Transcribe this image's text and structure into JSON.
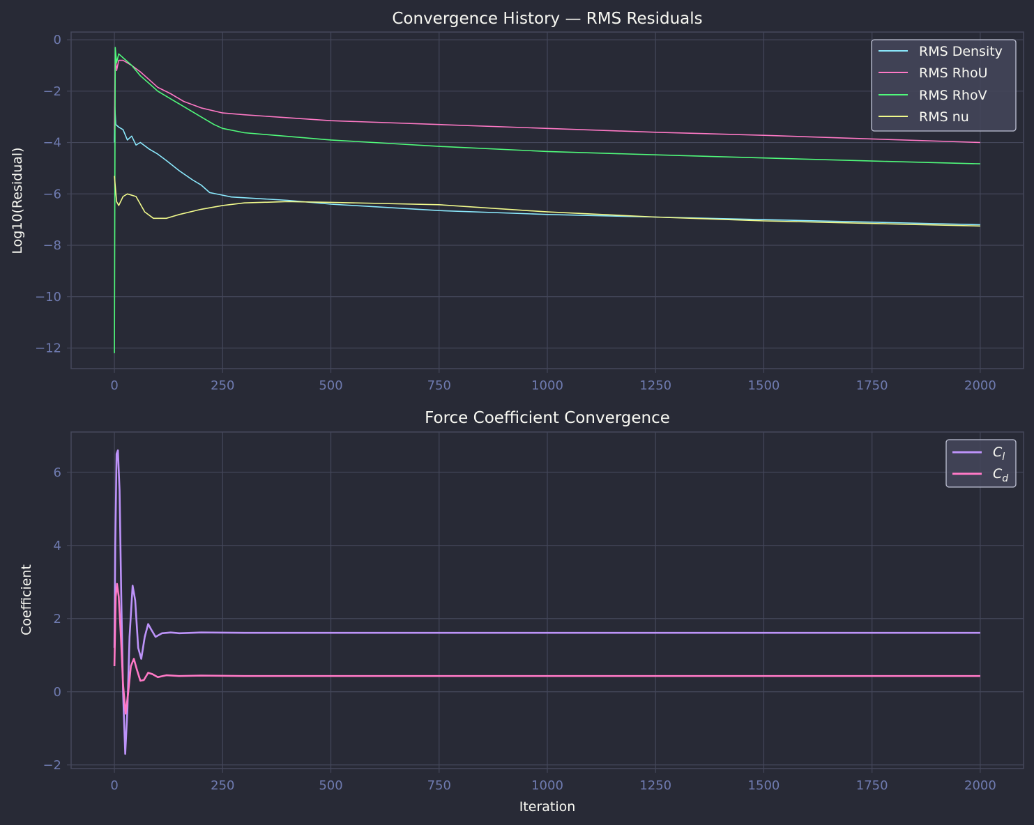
{
  "colors": {
    "background": "#282a36",
    "grid": "#44475a",
    "tick_text": "#6f7bb0",
    "text": "#f8f8f2",
    "legend_bg": "#44475a",
    "legend_border": "#c0c3d6"
  },
  "chart_data": [
    {
      "type": "line",
      "title": "Convergence History — RMS Residuals",
      "xlabel": "",
      "ylabel": "Log10(Residual)",
      "xlim": [
        -100,
        2100
      ],
      "ylim": [
        -12.8,
        0.3
      ],
      "xticks": [
        0,
        250,
        500,
        750,
        1000,
        1250,
        1500,
        1750,
        2000
      ],
      "xtick_labels": [
        "0",
        "250",
        "500",
        "750",
        "1000",
        "1250",
        "1500",
        "1750",
        "2000"
      ],
      "yticks": [
        0,
        -2,
        -4,
        -6,
        -8,
        -10,
        -12
      ],
      "ytick_labels": [
        "0",
        "−2",
        "−4",
        "−6",
        "−8",
        "−10",
        "−12"
      ],
      "grid": true,
      "legend_position": "top-right",
      "series": [
        {
          "name": "RMS Density",
          "color": "#8be9fd",
          "points": [
            [
              0,
              -4.0
            ],
            [
              1,
              -2.6
            ],
            [
              3,
              -3.3
            ],
            [
              10,
              -3.4
            ],
            [
              20,
              -3.5
            ],
            [
              30,
              -3.9
            ],
            [
              40,
              -3.75
            ],
            [
              50,
              -4.1
            ],
            [
              60,
              -4.0
            ],
            [
              80,
              -4.25
            ],
            [
              100,
              -4.45
            ],
            [
              120,
              -4.7
            ],
            [
              150,
              -5.1
            ],
            [
              180,
              -5.45
            ],
            [
              200,
              -5.65
            ],
            [
              220,
              -5.95
            ],
            [
              250,
              -6.05
            ],
            [
              270,
              -6.12
            ],
            [
              300,
              -6.15
            ],
            [
              400,
              -6.25
            ],
            [
              500,
              -6.4
            ],
            [
              750,
              -6.65
            ],
            [
              1000,
              -6.8
            ],
            [
              1250,
              -6.9
            ],
            [
              1500,
              -7.0
            ],
            [
              1750,
              -7.1
            ],
            [
              2000,
              -7.2
            ]
          ]
        },
        {
          "name": "RMS RhoU",
          "color": "#ff79c6",
          "points": [
            [
              0,
              -3.5
            ],
            [
              2,
              -0.5
            ],
            [
              5,
              -1.2
            ],
            [
              10,
              -0.8
            ],
            [
              20,
              -0.8
            ],
            [
              40,
              -1.0
            ],
            [
              60,
              -1.25
            ],
            [
              80,
              -1.55
            ],
            [
              100,
              -1.85
            ],
            [
              130,
              -2.1
            ],
            [
              160,
              -2.4
            ],
            [
              200,
              -2.65
            ],
            [
              250,
              -2.85
            ],
            [
              300,
              -2.92
            ],
            [
              500,
              -3.15
            ],
            [
              750,
              -3.3
            ],
            [
              1000,
              -3.45
            ],
            [
              1250,
              -3.6
            ],
            [
              1500,
              -3.72
            ],
            [
              1750,
              -3.86
            ],
            [
              2000,
              -4.0
            ]
          ]
        },
        {
          "name": "RMS RhoV",
          "color": "#50fa7b",
          "points": [
            [
              0,
              -12.2
            ],
            [
              2,
              -0.3
            ],
            [
              5,
              -0.9
            ],
            [
              10,
              -0.55
            ],
            [
              20,
              -0.7
            ],
            [
              40,
              -1.0
            ],
            [
              60,
              -1.4
            ],
            [
              80,
              -1.7
            ],
            [
              100,
              -2.0
            ],
            [
              120,
              -2.2
            ],
            [
              150,
              -2.5
            ],
            [
              180,
              -2.8
            ],
            [
              200,
              -3.0
            ],
            [
              230,
              -3.3
            ],
            [
              250,
              -3.45
            ],
            [
              280,
              -3.55
            ],
            [
              300,
              -3.62
            ],
            [
              500,
              -3.9
            ],
            [
              750,
              -4.15
            ],
            [
              1000,
              -4.35
            ],
            [
              1250,
              -4.48
            ],
            [
              1500,
              -4.6
            ],
            [
              1750,
              -4.72
            ],
            [
              2000,
              -4.83
            ]
          ]
        },
        {
          "name": "RMS nu",
          "color": "#f1fa8c",
          "points": [
            [
              0,
              -5.3
            ],
            [
              5,
              -6.3
            ],
            [
              10,
              -6.45
            ],
            [
              20,
              -6.1
            ],
            [
              30,
              -6.0
            ],
            [
              50,
              -6.1
            ],
            [
              70,
              -6.7
            ],
            [
              90,
              -6.95
            ],
            [
              120,
              -6.95
            ],
            [
              150,
              -6.8
            ],
            [
              200,
              -6.6
            ],
            [
              250,
              -6.45
            ],
            [
              300,
              -6.35
            ],
            [
              400,
              -6.3
            ],
            [
              500,
              -6.33
            ],
            [
              750,
              -6.42
            ],
            [
              1000,
              -6.7
            ],
            [
              1250,
              -6.9
            ],
            [
              1500,
              -7.05
            ],
            [
              1750,
              -7.15
            ],
            [
              2000,
              -7.25
            ]
          ]
        }
      ]
    },
    {
      "type": "line",
      "title": "Force Coefficient Convergence",
      "xlabel": "Iteration",
      "ylabel": "Coefficient",
      "xlim": [
        -100,
        2100
      ],
      "ylim": [
        -2.1,
        7.1
      ],
      "xticks": [
        0,
        250,
        500,
        750,
        1000,
        1250,
        1500,
        1750,
        2000
      ],
      "xtick_labels": [
        "0",
        "250",
        "500",
        "750",
        "1000",
        "1250",
        "1500",
        "1750",
        "2000"
      ],
      "yticks": [
        6,
        4,
        2,
        0,
        -2
      ],
      "ytick_labels": [
        "6",
        "4",
        "2",
        "0",
        "−2"
      ],
      "grid": true,
      "legend_position": "top-right",
      "series": [
        {
          "name": "C_l",
          "label_main": "C",
          "label_sub": "l",
          "color": "#bd93f9",
          "points": [
            [
              0,
              1.2
            ],
            [
              2,
              4.0
            ],
            [
              5,
              6.5
            ],
            [
              8,
              6.6
            ],
            [
              12,
              5.5
            ],
            [
              16,
              2.5
            ],
            [
              20,
              0.0
            ],
            [
              25,
              -1.7
            ],
            [
              30,
              -0.5
            ],
            [
              35,
              1.5
            ],
            [
              42,
              2.9
            ],
            [
              48,
              2.5
            ],
            [
              55,
              1.2
            ],
            [
              62,
              0.9
            ],
            [
              70,
              1.5
            ],
            [
              78,
              1.85
            ],
            [
              85,
              1.7
            ],
            [
              95,
              1.5
            ],
            [
              110,
              1.6
            ],
            [
              130,
              1.62
            ],
            [
              150,
              1.6
            ],
            [
              200,
              1.62
            ],
            [
              300,
              1.61
            ],
            [
              2000,
              1.61
            ]
          ]
        },
        {
          "name": "C_d",
          "label_main": "C",
          "label_sub": "d",
          "color": "#ff79c6",
          "points": [
            [
              0,
              0.7
            ],
            [
              3,
              2.6
            ],
            [
              6,
              2.95
            ],
            [
              10,
              2.6
            ],
            [
              15,
              1.5
            ],
            [
              20,
              0.2
            ],
            [
              26,
              -0.6
            ],
            [
              32,
              0.0
            ],
            [
              38,
              0.7
            ],
            [
              45,
              0.9
            ],
            [
              52,
              0.6
            ],
            [
              60,
              0.3
            ],
            [
              68,
              0.32
            ],
            [
              78,
              0.52
            ],
            [
              88,
              0.48
            ],
            [
              100,
              0.4
            ],
            [
              120,
              0.45
            ],
            [
              150,
              0.43
            ],
            [
              200,
              0.44
            ],
            [
              300,
              0.43
            ],
            [
              2000,
              0.43
            ]
          ]
        }
      ]
    }
  ]
}
